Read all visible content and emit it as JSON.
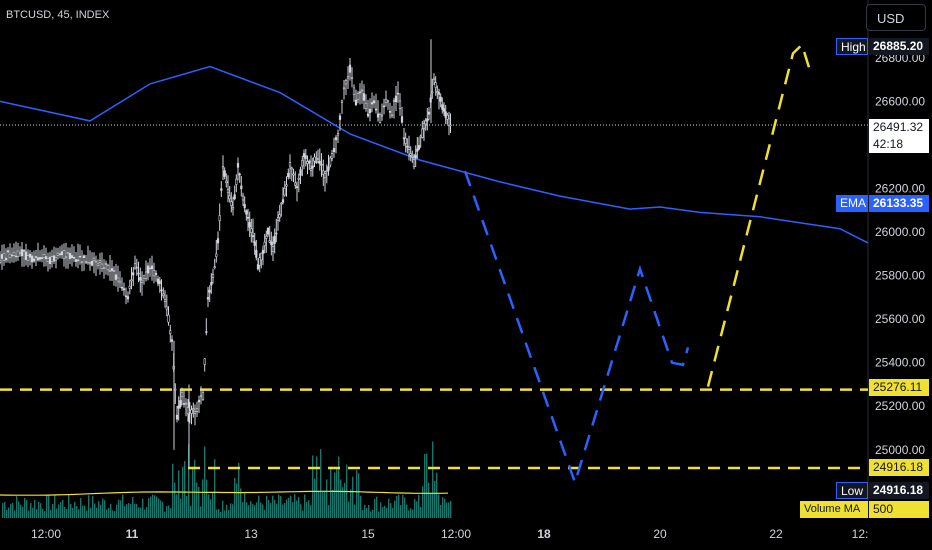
{
  "header": {
    "symbol": "BTCUSD, 45, INDEX",
    "currency_button": "USD"
  },
  "price_tags": {
    "high_label": "High",
    "high_value": "26885.20",
    "current_value": "26491.32",
    "countdown": "42:18",
    "ema_label": "EMA",
    "ema_value": "26133.35",
    "level_upper": "25276.11",
    "level_lower": "24916.18",
    "low_label": "Low",
    "low_value": "24916.18",
    "volume_ma_label": "Volume MA",
    "volume_ma_value": "500"
  },
  "colors": {
    "background": "#000000",
    "candle": "#d1d4dc",
    "ema": "#2962ff",
    "projection_down": "#2962ff",
    "projection_up": "#f0e032",
    "level": "#f0e032",
    "volume": "#22a699",
    "volume_ma": "#f0e032"
  },
  "chart_data": {
    "type": "line",
    "title": "BTCUSD, 45, INDEX",
    "y_ticks": [
      "26800.00",
      "26600.00",
      "26200.00",
      "26000.00",
      "25800.00",
      "25600.00",
      "25400.00",
      "25200.00",
      "25000.00"
    ],
    "x_ticks": [
      "12:00",
      "11",
      "13",
      "15",
      "12:00",
      "18",
      "20",
      "22",
      "12:"
    ],
    "x_ticks_bold": [
      "11",
      "18"
    ],
    "ylim": [
      24840,
      26960
    ],
    "horizontal_levels": [
      25276.11,
      24916.18
    ],
    "current_price": 26491.32,
    "ema_last": 26133.35,
    "price_series": [
      {
        "x": 0,
        "y": 25875
      },
      {
        "x": 10,
        "y": 25900
      },
      {
        "x": 20,
        "y": 25910
      },
      {
        "x": 30,
        "y": 25880
      },
      {
        "x": 40,
        "y": 25890
      },
      {
        "x": 50,
        "y": 25870
      },
      {
        "x": 60,
        "y": 25900
      },
      {
        "x": 70,
        "y": 25890
      },
      {
        "x": 80,
        "y": 25880
      },
      {
        "x": 90,
        "y": 25870
      },
      {
        "x": 100,
        "y": 25850
      },
      {
        "x": 110,
        "y": 25830
      },
      {
        "x": 120,
        "y": 25780
      },
      {
        "x": 128,
        "y": 25700
      },
      {
        "x": 135,
        "y": 25850
      },
      {
        "x": 142,
        "y": 25760
      },
      {
        "x": 150,
        "y": 25850
      },
      {
        "x": 158,
        "y": 25780
      },
      {
        "x": 165,
        "y": 25700
      },
      {
        "x": 172,
        "y": 25500
      },
      {
        "x": 177,
        "y": 25150
      },
      {
        "x": 182,
        "y": 25250
      },
      {
        "x": 188,
        "y": 25180
      },
      {
        "x": 195,
        "y": 25170
      },
      {
        "x": 203,
        "y": 25250
      },
      {
        "x": 208,
        "y": 25700
      },
      {
        "x": 213,
        "y": 25800
      },
      {
        "x": 218,
        "y": 25950
      },
      {
        "x": 223,
        "y": 26300
      },
      {
        "x": 228,
        "y": 26200
      },
      {
        "x": 233,
        "y": 26100
      },
      {
        "x": 238,
        "y": 26300
      },
      {
        "x": 243,
        "y": 26150
      },
      {
        "x": 248,
        "y": 26050
      },
      {
        "x": 253,
        "y": 26000
      },
      {
        "x": 258,
        "y": 25850
      },
      {
        "x": 263,
        "y": 25900
      },
      {
        "x": 268,
        "y": 26000
      },
      {
        "x": 273,
        "y": 25920
      },
      {
        "x": 278,
        "y": 26050
      },
      {
        "x": 283,
        "y": 26150
      },
      {
        "x": 290,
        "y": 26300
      },
      {
        "x": 297,
        "y": 26200
      },
      {
        "x": 304,
        "y": 26350
      },
      {
        "x": 311,
        "y": 26300
      },
      {
        "x": 318,
        "y": 26350
      },
      {
        "x": 325,
        "y": 26250
      },
      {
        "x": 332,
        "y": 26350
      },
      {
        "x": 338,
        "y": 26450
      },
      {
        "x": 344,
        "y": 26650
      },
      {
        "x": 350,
        "y": 26750
      },
      {
        "x": 356,
        "y": 26600
      },
      {
        "x": 362,
        "y": 26650
      },
      {
        "x": 368,
        "y": 26550
      },
      {
        "x": 374,
        "y": 26600
      },
      {
        "x": 380,
        "y": 26520
      },
      {
        "x": 386,
        "y": 26600
      },
      {
        "x": 392,
        "y": 26550
      },
      {
        "x": 398,
        "y": 26650
      },
      {
        "x": 404,
        "y": 26450
      },
      {
        "x": 409,
        "y": 26380
      },
      {
        "x": 414,
        "y": 26320
      },
      {
        "x": 419,
        "y": 26400
      },
      {
        "x": 424,
        "y": 26480
      },
      {
        "x": 429,
        "y": 26550
      },
      {
        "x": 434,
        "y": 26700
      },
      {
        "x": 439,
        "y": 26620
      },
      {
        "x": 444,
        "y": 26560
      },
      {
        "x": 449,
        "y": 26500
      },
      {
        "x": 452,
        "y": 26491.32
      }
    ],
    "ema_series": [
      {
        "x": 0,
        "y": 26600
      },
      {
        "x": 90,
        "y": 26510
      },
      {
        "x": 150,
        "y": 26680
      },
      {
        "x": 210,
        "y": 26760
      },
      {
        "x": 280,
        "y": 26640
      },
      {
        "x": 350,
        "y": 26450
      },
      {
        "x": 420,
        "y": 26330
      },
      {
        "x": 500,
        "y": 26230
      },
      {
        "x": 560,
        "y": 26165
      },
      {
        "x": 630,
        "y": 26105
      },
      {
        "x": 660,
        "y": 26115
      },
      {
        "x": 700,
        "y": 26090
      },
      {
        "x": 760,
        "y": 26070
      },
      {
        "x": 840,
        "y": 26015
      },
      {
        "x": 868,
        "y": 25950
      }
    ],
    "projection_down": [
      {
        "x": 465,
        "y": 26280
      },
      {
        "x": 575,
        "y": 24850
      },
      {
        "x": 640,
        "y": 25830
      },
      {
        "x": 672,
        "y": 25400
      },
      {
        "x": 683,
        "y": 25390
      },
      {
        "x": 688,
        "y": 25470
      }
    ],
    "projection_up": [
      {
        "x": 708,
        "y": 25290
      },
      {
        "x": 793,
        "y": 26820
      },
      {
        "x": 802,
        "y": 26860
      },
      {
        "x": 810,
        "y": 26740
      }
    ]
  }
}
